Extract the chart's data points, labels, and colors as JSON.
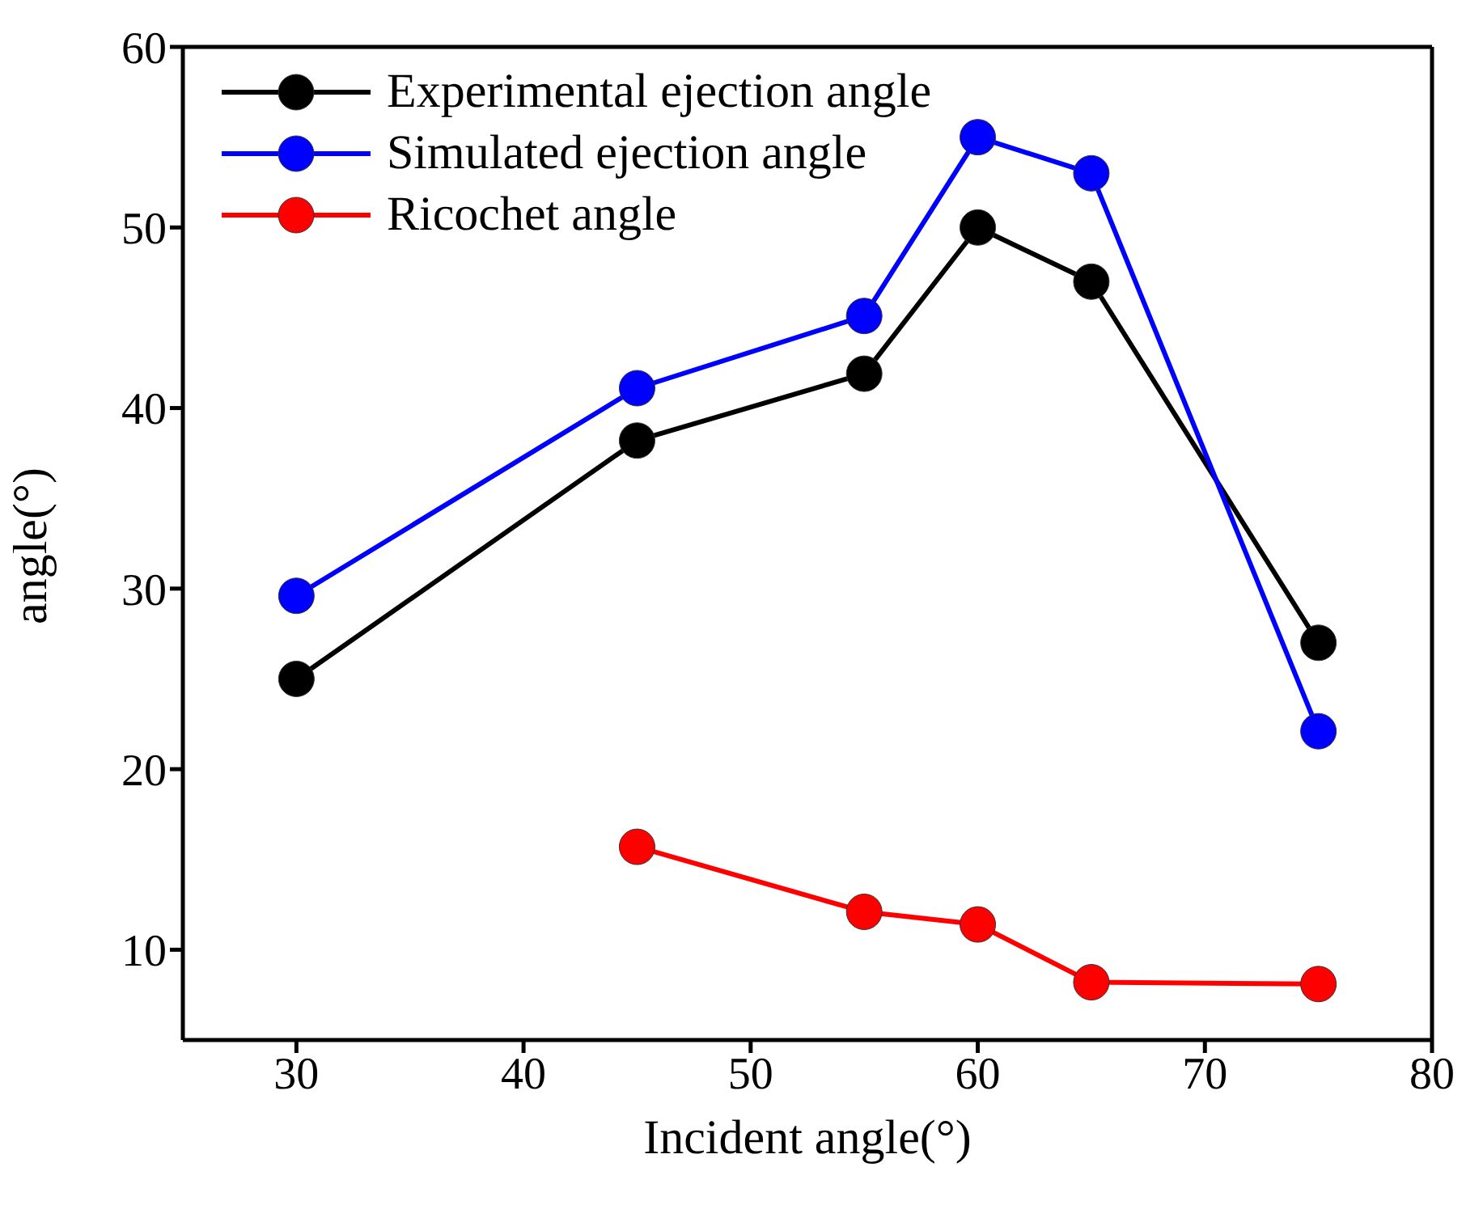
{
  "chart_data": {
    "type": "line",
    "xlabel": "Incident angle(°)",
    "ylabel": "angle(°)",
    "xlim": [
      25,
      80
    ],
    "xticks": [
      30,
      40,
      50,
      60,
      70,
      80
    ],
    "ylim": [
      5,
      60
    ],
    "yticks": [
      10,
      20,
      30,
      40,
      50,
      60
    ],
    "legend": "top left",
    "marker": "circle",
    "line_style": "solid",
    "series": [
      {
        "name": "Experimental ejection angle",
        "color": "#000000",
        "x": [
          30,
          45,
          55,
          60,
          65,
          75
        ],
        "values": [
          25,
          38.2,
          41.9,
          50,
          47,
          27
        ]
      },
      {
        "name": "Simulated ejection angle",
        "color": "#0000ff",
        "x": [
          30,
          45,
          55,
          60,
          65,
          75
        ],
        "values": [
          29.6,
          41.1,
          45.1,
          55,
          53,
          22.1
        ]
      },
      {
        "name": "Ricochet angle",
        "color": "#ff0000",
        "x": [
          45,
          55,
          60,
          65,
          75
        ],
        "values": [
          15.7,
          12.1,
          11.4,
          8.2,
          8.1
        ]
      }
    ]
  }
}
